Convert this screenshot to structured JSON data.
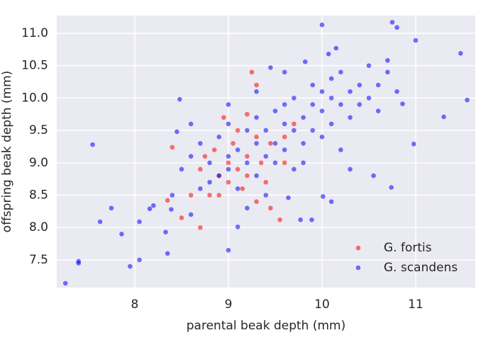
{
  "chart_data": {
    "type": "scatter",
    "x_label": "parental beak depth (mm)",
    "y_label": "offspring beak depth (mm)",
    "xlim": [
      7.167,
      11.636
    ],
    "ylim": [
      7.073,
      11.273
    ],
    "xticks": [
      8,
      9,
      10,
      11
    ],
    "yticks": [
      7.5,
      {
        "value": 8,
        "label": "8.0"
      },
      8.5,
      {
        "value": 9,
        "label": "9.0"
      },
      9.5,
      {
        "value": 10,
        "label": "10.0"
      },
      10.5,
      {
        "value": 11,
        "label": "11.0"
      }
    ],
    "grid": true,
    "legend": "lower right",
    "series": [
      {
        "name": "G. fortis",
        "color": "#ff0000",
        "x": [
          8.35,
          8.4,
          8.5,
          8.6,
          8.7,
          8.7,
          8.75,
          8.8,
          8.85,
          8.9,
          8.9,
          9.0,
          9.0,
          9.05,
          9.1,
          9.1,
          9.15,
          9.2,
          9.2,
          9.25,
          9.3,
          9.3,
          9.3,
          9.35,
          9.4,
          9.45,
          9.45,
          9.55,
          9.6,
          9.6,
          9.7,
          8.95,
          9.2
        ],
        "values": [
          8.42,
          9.24,
          8.15,
          8.5,
          8.0,
          8.9,
          9.1,
          8.5,
          9.2,
          8.8,
          8.5,
          9.0,
          8.7,
          9.3,
          8.9,
          9.5,
          8.6,
          9.1,
          8.8,
          10.4,
          10.2,
          9.4,
          8.4,
          9.0,
          8.7,
          9.3,
          8.3,
          8.12,
          9.0,
          9.4,
          9.6,
          9.7,
          9.75
        ]
      },
      {
        "name": "G. scandens",
        "color": "#0000ff",
        "x": [
          7.26,
          7.4,
          7.4,
          7.55,
          7.75,
          7.63,
          7.86,
          7.95,
          8.05,
          8.05,
          8.16,
          8.2,
          8.35,
          8.33,
          8.48,
          8.45,
          8.39,
          9.0,
          9.1,
          10.0,
          10.75,
          10.8,
          11.0,
          11.48,
          11.55,
          11.3,
          10.98,
          10.86,
          10.74,
          10.55,
          10.7,
          10.15,
          10.07,
          10.01,
          10.1,
          9.89,
          9.64,
          9.77,
          9.45,
          9.82,
          8.5,
          8.6,
          8.7,
          8.7,
          8.8,
          8.8,
          8.9,
          8.9,
          9.0,
          9.0,
          9.0,
          9.1,
          9.1,
          9.2,
          9.2,
          9.3,
          9.3,
          9.3,
          9.4,
          9.4,
          9.5,
          9.5,
          9.5,
          9.6,
          9.6,
          9.6,
          9.7,
          9.7,
          9.7,
          9.8,
          9.8,
          9.9,
          9.9,
          9.9,
          10.0,
          10.0,
          10.0,
          10.1,
          10.1,
          10.1,
          10.2,
          10.2,
          10.3,
          10.3,
          10.4,
          10.4,
          10.5,
          10.5,
          10.6,
          10.6,
          10.7,
          10.8,
          8.4,
          8.6,
          9.2,
          9.4,
          9.8,
          10.2,
          10.3,
          8.6,
          9.0,
          9.3,
          9.6
        ],
        "values": [
          7.14,
          7.48,
          7.45,
          9.28,
          8.3,
          8.09,
          7.9,
          7.4,
          7.5,
          8.09,
          8.29,
          8.34,
          7.6,
          7.93,
          9.98,
          9.48,
          8.28,
          7.65,
          8.01,
          11.13,
          11.17,
          11.09,
          10.89,
          10.69,
          9.97,
          9.71,
          9.29,
          9.91,
          8.62,
          8.8,
          10.58,
          10.77,
          10.68,
          8.48,
          8.4,
          8.12,
          8.46,
          8.12,
          10.47,
          10.56,
          8.9,
          9.1,
          9.3,
          8.6,
          9.0,
          8.7,
          9.4,
          8.8,
          9.1,
          8.9,
          9.6,
          9.2,
          8.6,
          9.5,
          9.0,
          9.7,
          9.3,
          8.8,
          9.5,
          9.1,
          9.8,
          9.3,
          9.0,
          9.6,
          9.9,
          9.2,
          9.5,
          10.0,
          8.9,
          9.7,
          9.3,
          9.9,
          10.2,
          9.5,
          9.8,
          10.1,
          9.4,
          10.0,
          10.3,
          9.6,
          9.9,
          10.4,
          10.1,
          9.7,
          10.2,
          9.9,
          10.5,
          10.0,
          10.2,
          9.8,
          10.4,
          10.1,
          8.5,
          8.2,
          8.3,
          8.5,
          9.0,
          9.2,
          8.9,
          9.6,
          9.9,
          10.1,
          10.4
        ]
      }
    ]
  }
}
